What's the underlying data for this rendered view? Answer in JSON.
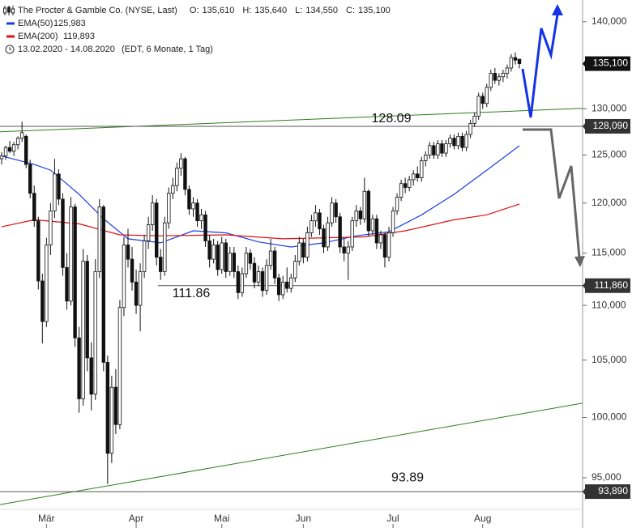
{
  "chart_data": {
    "type": "candlestick",
    "title": "The Procter & Gamble Co. (NYSE, Last)",
    "quote": [
      {
        "key": "O:",
        "label": "135,610"
      },
      {
        "key": "H:",
        "label": "135,640"
      },
      {
        "key": "L:",
        "label": "134,550"
      },
      {
        "key": "C:",
        "label": "135,100"
      }
    ],
    "period": "13.02.2020 - 14.08.2020",
    "period_note": "(EDT, 6 Monate, 1 Tag)",
    "log_scale": true,
    "ylim": [
      91.03,
      142.61
    ],
    "xlim": [
      -0.4,
      142.5
    ],
    "yticks": [
      {
        "value": 95,
        "label": "95,000"
      },
      {
        "value": 100,
        "label": "100,000"
      },
      {
        "value": 105,
        "label": "105,000"
      },
      {
        "value": 110,
        "label": "110,000"
      },
      {
        "value": 115,
        "label": "115,000"
      },
      {
        "value": 120,
        "label": "120,000"
      },
      {
        "value": 125,
        "label": "125,000"
      },
      {
        "value": 130,
        "label": "130,000"
      },
      {
        "value": 135,
        "label": "135,000"
      },
      {
        "value": 140,
        "label": "140,000"
      }
    ],
    "xticks": [
      {
        "value": 11,
        "label": "Mär"
      },
      {
        "value": 33,
        "label": "Apr"
      },
      {
        "value": 54,
        "label": "Mai"
      },
      {
        "value": 74,
        "label": "Jun"
      },
      {
        "value": 96,
        "label": "Jul"
      },
      {
        "value": 118,
        "label": "Aug"
      }
    ],
    "up_color": "#ffffff",
    "down_color": "#111111",
    "candles": [
      [
        124.6,
        125.3,
        124.0,
        124.9
      ],
      [
        124.9,
        126.0,
        124.5,
        125.8
      ],
      [
        125.8,
        126.5,
        125.2,
        125.4
      ],
      [
        125.4,
        126.4,
        124.9,
        126.1
      ],
      [
        126.1,
        127.0,
        125.6,
        126.8
      ],
      [
        126.8,
        128.6,
        126.4,
        127.4
      ],
      [
        127.0,
        127.2,
        123.6,
        124.0
      ],
      [
        124.0,
        124.5,
        120.5,
        121.0
      ],
      [
        121.0,
        121.8,
        117.6,
        118.2
      ],
      [
        118.2,
        118.6,
        111.5,
        112.3
      ],
      [
        112.3,
        113.0,
        106.5,
        108.5
      ],
      [
        108.5,
        116.5,
        108.0,
        115.8
      ],
      [
        115.8,
        120.0,
        114.8,
        119.2
      ],
      [
        119.2,
        124.6,
        118.5,
        123.0
      ],
      [
        123.0,
        123.5,
        119.8,
        120.4
      ],
      [
        120.4,
        121.0,
        112.8,
        113.6
      ],
      [
        113.6,
        115.0,
        109.6,
        110.4
      ],
      [
        110.4,
        120.6,
        110.0,
        119.6
      ],
      [
        119.6,
        119.9,
        106.2,
        107.0
      ],
      [
        107.0,
        108.0,
        100.4,
        101.6
      ],
      [
        101.6,
        115.4,
        101.0,
        114.2
      ],
      [
        114.2,
        114.8,
        104.0,
        105.2
      ],
      [
        105.2,
        106.6,
        100.6,
        102.0
      ],
      [
        102.0,
        114.4,
        101.5,
        113.2
      ],
      [
        113.2,
        120.4,
        112.6,
        119.6
      ],
      [
        119.6,
        119.8,
        104.0,
        104.8
      ],
      [
        104.8,
        105.4,
        94.5,
        97.0
      ],
      [
        97.0,
        103.6,
        96.2,
        102.6
      ],
      [
        102.6,
        104.2,
        98.6,
        99.4
      ],
      [
        99.4,
        110.5,
        99.0,
        109.8
      ],
      [
        109.8,
        116.6,
        109.0,
        115.8
      ],
      [
        115.8,
        117.4,
        113.6,
        114.4
      ],
      [
        114.4,
        115.6,
        111.4,
        112.2
      ],
      [
        112.2,
        113.4,
        109.2,
        110.0
      ],
      [
        110.0,
        114.0,
        107.6,
        113.2
      ],
      [
        113.2,
        116.8,
        112.6,
        116.2
      ],
      [
        116.2,
        118.6,
        115.4,
        117.8
      ],
      [
        117.8,
        120.8,
        117.2,
        120.0
      ],
      [
        120.0,
        120.4,
        113.8,
        114.6
      ],
      [
        114.6,
        115.4,
        112.4,
        113.2
      ],
      [
        113.2,
        118.6,
        112.8,
        118.0
      ],
      [
        118.0,
        121.6,
        117.4,
        121.0
      ],
      [
        121.0,
        122.6,
        120.4,
        121.8
      ],
      [
        121.8,
        124.2,
        121.2,
        123.6
      ],
      [
        123.6,
        125.2,
        122.8,
        124.6
      ],
      [
        124.6,
        124.8,
        120.8,
        121.4
      ],
      [
        121.4,
        121.8,
        118.8,
        119.4
      ],
      [
        119.4,
        120.6,
        118.6,
        120.0
      ],
      [
        120.0,
        120.4,
        117.6,
        118.2
      ],
      [
        118.2,
        119.4,
        117.4,
        118.8
      ],
      [
        118.8,
        119.2,
        115.6,
        116.2
      ],
      [
        116.2,
        116.8,
        113.6,
        114.4
      ],
      [
        114.4,
        116.4,
        114.0,
        115.8
      ],
      [
        115.8,
        116.2,
        112.8,
        113.4
      ],
      [
        113.4,
        116.6,
        113.0,
        116.0
      ],
      [
        116.0,
        116.4,
        112.6,
        113.2
      ],
      [
        113.2,
        115.6,
        112.8,
        115.0
      ],
      [
        115.0,
        115.6,
        112.6,
        113.2
      ],
      [
        113.2,
        113.8,
        110.6,
        111.2
      ],
      [
        111.2,
        113.6,
        110.8,
        113.0
      ],
      [
        113.0,
        115.6,
        112.6,
        115.0
      ],
      [
        115.0,
        115.4,
        113.4,
        114.0
      ],
      [
        114.0,
        114.6,
        111.6,
        112.2
      ],
      [
        112.2,
        113.8,
        111.8,
        113.2
      ],
      [
        113.2,
        113.6,
        110.8,
        111.4
      ],
      [
        111.4,
        114.4,
        111.0,
        113.8
      ],
      [
        113.8,
        116.4,
        113.4,
        115.2
      ],
      [
        115.2,
        115.6,
        112.0,
        112.6
      ],
      [
        112.6,
        113.0,
        110.4,
        111.0
      ],
      [
        111.0,
        112.8,
        110.6,
        112.2
      ],
      [
        112.2,
        113.6,
        111.2,
        111.6
      ],
      [
        111.6,
        113.0,
        111.2,
        112.6
      ],
      [
        112.6,
        114.8,
        112.2,
        114.2
      ],
      [
        114.2,
        116.6,
        113.8,
        116.0
      ],
      [
        116.0,
        116.4,
        114.0,
        114.6
      ],
      [
        114.6,
        117.6,
        114.2,
        117.0
      ],
      [
        117.0,
        118.8,
        116.6,
        118.2
      ],
      [
        118.2,
        119.8,
        117.6,
        119.0
      ],
      [
        119.0,
        119.4,
        116.8,
        117.4
      ],
      [
        117.4,
        117.8,
        115.0,
        115.6
      ],
      [
        115.6,
        118.6,
        115.2,
        118.0
      ],
      [
        118.0,
        120.6,
        117.6,
        120.0
      ],
      [
        120.0,
        120.4,
        118.0,
        118.6
      ],
      [
        118.6,
        119.0,
        115.0,
        115.6
      ],
      [
        115.6,
        116.4,
        114.2,
        115.0
      ],
      [
        115.0,
        116.2,
        112.4,
        115.6
      ],
      [
        115.6,
        118.6,
        115.2,
        118.2
      ],
      [
        118.2,
        119.8,
        117.6,
        119.2
      ],
      [
        119.2,
        119.6,
        117.8,
        118.4
      ],
      [
        118.4,
        122.6,
        118.0,
        121.2
      ],
      [
        121.2,
        121.4,
        116.6,
        117.2
      ],
      [
        117.2,
        118.8,
        116.8,
        118.4
      ],
      [
        118.4,
        118.8,
        115.4,
        116.0
      ],
      [
        116.0,
        117.2,
        115.4,
        116.8
      ],
      [
        116.8,
        117.0,
        113.6,
        114.6
      ],
      [
        114.6,
        117.6,
        114.2,
        117.0
      ],
      [
        117.0,
        119.6,
        116.6,
        119.2
      ],
      [
        119.2,
        121.0,
        118.8,
        120.6
      ],
      [
        120.6,
        122.4,
        120.2,
        122.0
      ],
      [
        122.0,
        122.6,
        121.0,
        121.6
      ],
      [
        121.6,
        122.8,
        121.2,
        122.4
      ],
      [
        122.4,
        123.4,
        121.8,
        123.0
      ],
      [
        123.0,
        123.8,
        122.2,
        122.6
      ],
      [
        122.6,
        124.8,
        122.2,
        124.4
      ],
      [
        124.4,
        125.4,
        123.8,
        125.0
      ],
      [
        125.0,
        126.4,
        124.6,
        126.0
      ],
      [
        126.0,
        126.4,
        124.6,
        125.0
      ],
      [
        125.0,
        126.6,
        124.6,
        126.2
      ],
      [
        126.2,
        126.6,
        124.8,
        125.2
      ],
      [
        125.2,
        126.6,
        124.8,
        126.2
      ],
      [
        126.2,
        127.2,
        125.8,
        126.8
      ],
      [
        126.8,
        127.2,
        125.6,
        126.0
      ],
      [
        126.0,
        127.4,
        125.6,
        127.0
      ],
      [
        127.0,
        127.4,
        125.4,
        125.8
      ],
      [
        125.8,
        127.6,
        125.4,
        127.2
      ],
      [
        127.2,
        128.8,
        126.8,
        128.4
      ],
      [
        128.4,
        129.6,
        128.0,
        129.2
      ],
      [
        129.2,
        131.8,
        128.8,
        131.4
      ],
      [
        131.4,
        131.8,
        130.0,
        130.6
      ],
      [
        130.6,
        132.8,
        130.2,
        132.4
      ],
      [
        132.4,
        134.4,
        132.0,
        134.0
      ],
      [
        134.0,
        134.6,
        132.8,
        133.2
      ],
      [
        133.2,
        134.0,
        132.6,
        133.6
      ],
      [
        133.6,
        134.4,
        133.0,
        134.0
      ],
      [
        134.0,
        135.0,
        133.4,
        134.6
      ],
      [
        134.6,
        136.2,
        134.2,
        135.8
      ],
      [
        135.8,
        136.4,
        135.0,
        135.5
      ],
      [
        135.61,
        135.64,
        134.55,
        135.1
      ]
    ],
    "series": [
      {
        "name": "EMA(50)",
        "color": "#1a3ee0",
        "last_label": "125,983",
        "x": [
          0,
          8,
          12,
          19,
          25,
          31,
          39,
          47,
          55,
          63,
          71,
          79,
          87,
          95,
          103,
          111,
          119,
          127
        ],
        "values": [
          124.9,
          124.0,
          123.4,
          120.9,
          118.4,
          116.4,
          116.0,
          117.2,
          117.0,
          116.1,
          115.6,
          116.0,
          116.7,
          117.1,
          118.8,
          120.9,
          123.4,
          125.983
        ]
      },
      {
        "name": "EMA(200)",
        "color": "#dd1111",
        "last_label": "119,893",
        "x": [
          0,
          8,
          19,
          29,
          39,
          55,
          69,
          89,
          99,
          111,
          119,
          127
        ],
        "values": [
          117.6,
          118.3,
          117.9,
          116.8,
          116.7,
          116.8,
          116.4,
          116.6,
          117.2,
          118.3,
          118.8,
          119.893
        ]
      }
    ],
    "trendlines": [
      {
        "color": "#2e7d1e",
        "x": [
          -0.4,
          142.5
        ],
        "values": [
          127.49,
          130.06
        ]
      },
      {
        "color": "#2e7d1e",
        "x": [
          -0.4,
          142.5
        ],
        "values": [
          92.86,
          101.22
        ]
      }
    ],
    "levels": [
      {
        "value": 128.09,
        "label": "128.09",
        "tag": "128,090"
      },
      {
        "value": 111.86,
        "label": "111.86",
        "tag": "111,860"
      },
      {
        "value": 93.89,
        "label": "93.89",
        "tag": "93,890"
      }
    ],
    "last_price": {
      "value": 135.1,
      "label": "135,100"
    }
  }
}
